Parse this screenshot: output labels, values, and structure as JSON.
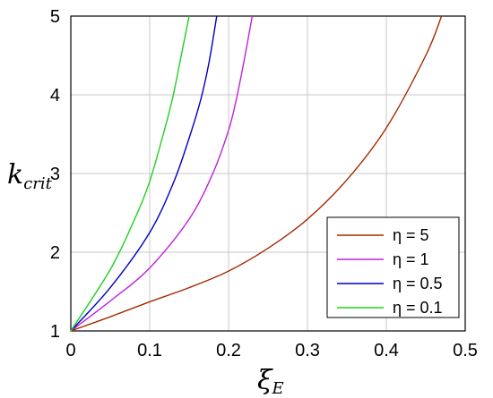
{
  "chart_data": {
    "type": "line",
    "title": "",
    "xlabel": {
      "main": "ξ",
      "sub": "E"
    },
    "ylabel": {
      "main": "k",
      "sub": "crit"
    },
    "xlim": [
      0,
      0.5
    ],
    "ylim": [
      1,
      5
    ],
    "grid": true,
    "legend_position": "bottom-right",
    "x_ticks": [
      "0",
      "0.1",
      "0.2",
      "0.3",
      "0.4",
      "0.5"
    ],
    "y_ticks": [
      "1",
      "2",
      "3",
      "4",
      "5"
    ],
    "series": [
      {
        "name": "η = 5",
        "color": "#a52a00",
        "x": [
          0,
          0.05,
          0.1,
          0.15,
          0.2,
          0.25,
          0.3,
          0.35,
          0.4,
          0.45,
          0.47
        ],
        "y": [
          1.0,
          1.18,
          1.37,
          1.55,
          1.76,
          2.05,
          2.42,
          2.92,
          3.58,
          4.5,
          5.0
        ]
      },
      {
        "name": "η = 1",
        "color": "#c020e0",
        "x": [
          0,
          0.05,
          0.1,
          0.15,
          0.18,
          0.2,
          0.21,
          0.22,
          0.23
        ],
        "y": [
          1.0,
          1.38,
          1.8,
          2.42,
          3.0,
          3.55,
          3.95,
          4.45,
          5.0
        ]
      },
      {
        "name": "η = 0.5",
        "color": "#0000c0",
        "x": [
          0,
          0.05,
          0.1,
          0.13,
          0.15,
          0.165,
          0.175,
          0.185
        ],
        "y": [
          1.0,
          1.55,
          2.25,
          2.88,
          3.45,
          3.95,
          4.4,
          5.0
        ]
      },
      {
        "name": "η = 0.1",
        "color": "#20d020",
        "x": [
          0,
          0.05,
          0.08,
          0.1,
          0.12,
          0.13,
          0.14,
          0.15
        ],
        "y": [
          1.0,
          1.78,
          2.4,
          2.9,
          3.6,
          4.0,
          4.5,
          5.0
        ]
      }
    ]
  }
}
